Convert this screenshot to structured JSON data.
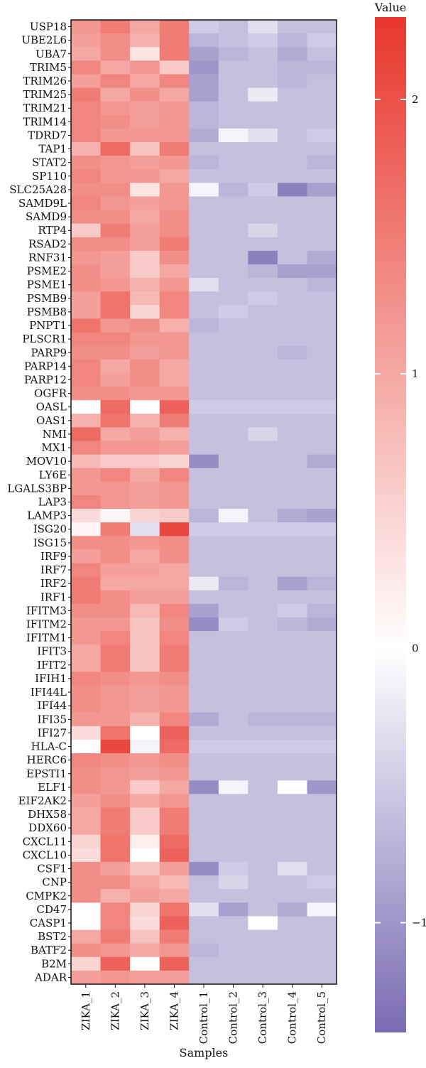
{
  "chart_data": {
    "type": "heatmap",
    "xlabel": "Samples",
    "ylabel": "",
    "legend": {
      "title": "Value",
      "ticks": [
        2,
        1,
        0,
        -1
      ],
      "tick_labels": [
        "2",
        "1",
        "0",
        "−1"
      ],
      "range": [
        -1.4,
        2.3
      ],
      "placement": "right"
    },
    "colors": {
      "high": "#e8372c",
      "mid": "#ffffff",
      "low": "#7a6bb3"
    },
    "columns": [
      "ZIKA_1",
      "ZIKA_2",
      "ZIKA_3",
      "ZIKA_4",
      "Control_1",
      "Control_2",
      "Control_3",
      "Control_4",
      "Control_5"
    ],
    "rows": [
      "USP18",
      "UBE2L6",
      "UBA7",
      "TRIM5",
      "TRIM26",
      "TRIM25",
      "TRIM21",
      "TRIM14",
      "TDRD7",
      "TAP1",
      "STAT2",
      "SP110",
      "SLC25A28",
      "SAMD9L",
      "SAMD9",
      "RTP4",
      "RSAD2",
      "RNF31",
      "PSME2",
      "PSME1",
      "PSMB9",
      "PSMB8",
      "PNPT1",
      "PLSCR1",
      "PARP9",
      "PARP14",
      "PARP12",
      "OGFR",
      "OASL",
      "OAS1",
      "NMI",
      "MX1",
      "MOV10",
      "LY6E",
      "LGALS3BP",
      "LAP3",
      "LAMP3",
      "ISG20",
      "ISG15",
      "IRF9",
      "IRF7",
      "IRF2",
      "IRF1",
      "IFITM3",
      "IFITM2",
      "IFITM1",
      "IFIT3",
      "IFIT2",
      "IFIH1",
      "IFI44L",
      "IFI44",
      "IFI35",
      "IFI27",
      "HLA-C",
      "HERC6",
      "EPSTI1",
      "ELF1",
      "EIF2AK2",
      "DHX58",
      "DDX60",
      "CXCL11",
      "CXCL10",
      "CSF1",
      "CNP",
      "CMPK2",
      "CD47",
      "CASP1",
      "BST2",
      "BATF2",
      "B2M",
      "ADAR"
    ],
    "values": [
      [
        1.2,
        1.5,
        1.0,
        1.5,
        -0.5,
        -0.6,
        -0.3,
        -0.6,
        -0.6
      ],
      [
        1.1,
        1.3,
        0.9,
        1.5,
        -0.7,
        -0.6,
        -0.5,
        -0.7,
        -0.5
      ],
      [
        1.0,
        1.3,
        0.3,
        1.5,
        -0.9,
        -0.7,
        -0.6,
        -0.8,
        -0.6
      ],
      [
        1.4,
        1.0,
        1.2,
        0.6,
        -1.0,
        -0.6,
        -0.6,
        -0.7,
        -0.7
      ],
      [
        1.1,
        1.4,
        1.0,
        1.4,
        -0.9,
        -0.6,
        -0.6,
        -0.7,
        -0.6
      ],
      [
        1.5,
        1.0,
        1.3,
        1.0,
        -0.9,
        -0.6,
        -0.2,
        -0.6,
        -0.6
      ],
      [
        1.4,
        1.2,
        1.1,
        1.2,
        -0.7,
        -0.6,
        -0.6,
        -0.6,
        -0.6
      ],
      [
        1.4,
        1.3,
        1.1,
        1.2,
        -0.7,
        -0.6,
        -0.6,
        -0.6,
        -0.6
      ],
      [
        1.4,
        1.2,
        1.2,
        1.2,
        -0.8,
        -0.1,
        -0.3,
        -0.6,
        -0.5
      ],
      [
        0.9,
        1.7,
        0.7,
        1.5,
        -0.6,
        -0.6,
        -0.6,
        -0.6,
        -0.6
      ],
      [
        1.3,
        1.2,
        1.1,
        1.2,
        -0.7,
        -0.6,
        -0.6,
        -0.6,
        -0.7
      ],
      [
        1.4,
        1.2,
        1.2,
        1.0,
        -0.6,
        -0.6,
        -0.6,
        -0.6,
        -0.6
      ],
      [
        1.3,
        1.3,
        0.3,
        1.2,
        -0.1,
        -0.7,
        -0.5,
        -1.2,
        -0.9
      ],
      [
        1.4,
        1.2,
        1.1,
        1.2,
        -0.6,
        -0.6,
        -0.6,
        -0.6,
        -0.6
      ],
      [
        1.3,
        1.3,
        1.0,
        1.3,
        -0.6,
        -0.6,
        -0.6,
        -0.6,
        -0.6
      ],
      [
        0.6,
        1.5,
        1.1,
        1.3,
        -0.6,
        -0.6,
        -0.4,
        -0.6,
        -0.6
      ],
      [
        1.3,
        1.3,
        1.1,
        1.5,
        -0.6,
        -0.6,
        -0.6,
        -0.6,
        -0.6
      ],
      [
        1.2,
        1.1,
        0.6,
        1.3,
        -0.6,
        -0.6,
        -1.2,
        -0.6,
        -0.8
      ],
      [
        1.3,
        1.1,
        0.6,
        1.0,
        -0.6,
        -0.6,
        -0.7,
        -0.9,
        -0.9
      ],
      [
        1.3,
        1.2,
        0.9,
        1.2,
        -0.3,
        -0.6,
        -0.6,
        -0.6,
        -0.7
      ],
      [
        1.1,
        1.6,
        0.8,
        1.4,
        -0.6,
        -0.6,
        -0.5,
        -0.6,
        -0.6
      ],
      [
        1.1,
        1.6,
        0.5,
        1.4,
        -0.6,
        -0.5,
        -0.6,
        -0.6,
        -0.6
      ],
      [
        1.6,
        1.2,
        1.3,
        0.9,
        -0.7,
        -0.6,
        -0.6,
        -0.6,
        -0.6
      ],
      [
        1.4,
        1.4,
        1.2,
        1.2,
        -0.6,
        -0.6,
        -0.6,
        -0.6,
        -0.6
      ],
      [
        1.3,
        1.3,
        1.1,
        1.2,
        -0.6,
        -0.6,
        -0.6,
        -0.7,
        -0.6
      ],
      [
        1.4,
        1.0,
        1.3,
        1.0,
        -0.6,
        -0.6,
        -0.6,
        -0.6,
        -0.6
      ],
      [
        1.4,
        1.1,
        1.3,
        1.0,
        -0.6,
        -0.6,
        -0.6,
        -0.6,
        -0.6
      ],
      [
        1.3,
        1.3,
        1.2,
        1.2,
        -0.6,
        -0.6,
        -0.6,
        -0.6,
        -0.6
      ],
      [
        0.0,
        1.7,
        0.0,
        1.8,
        -0.5,
        -0.5,
        -0.5,
        -0.5,
        -0.5
      ],
      [
        0.9,
        1.6,
        0.9,
        1.5,
        -0.6,
        -0.6,
        -0.6,
        -0.6,
        -0.6
      ],
      [
        1.7,
        1.0,
        1.1,
        0.9,
        -0.6,
        -0.6,
        -0.4,
        -0.6,
        -0.6
      ],
      [
        1.4,
        1.2,
        1.2,
        1.1,
        -0.6,
        -0.6,
        -0.6,
        -0.6,
        -0.6
      ],
      [
        0.8,
        0.6,
        0.6,
        0.5,
        -1.1,
        -0.6,
        -0.6,
        -0.6,
        -0.8
      ],
      [
        1.2,
        1.4,
        1.0,
        1.4,
        -0.6,
        -0.6,
        -0.6,
        -0.6,
        -0.6
      ],
      [
        1.2,
        1.2,
        1.1,
        1.2,
        -0.6,
        -0.6,
        -0.6,
        -0.6,
        -0.6
      ],
      [
        1.4,
        1.2,
        1.1,
        1.2,
        -0.6,
        -0.6,
        -0.6,
        -0.6,
        -0.6
      ],
      [
        0.4,
        0.1,
        0.5,
        0.6,
        -0.7,
        -0.1,
        -0.6,
        -0.8,
        -0.9
      ],
      [
        0.1,
        1.5,
        -0.3,
        2.1,
        -0.5,
        -0.5,
        -0.5,
        -0.5,
        -0.5
      ],
      [
        1.3,
        1.3,
        1.2,
        1.3,
        -0.6,
        -0.6,
        -0.6,
        -0.6,
        -0.6
      ],
      [
        1.1,
        1.3,
        1.0,
        1.3,
        -0.6,
        -0.6,
        -0.6,
        -0.6,
        -0.6
      ],
      [
        1.4,
        1.1,
        1.1,
        1.0,
        -0.6,
        -0.6,
        -0.6,
        -0.6,
        -0.6
      ],
      [
        1.5,
        1.0,
        1.0,
        1.0,
        -0.2,
        -0.7,
        -0.6,
        -0.9,
        -0.7
      ],
      [
        1.5,
        1.3,
        1.1,
        1.1,
        -0.6,
        -0.6,
        -0.6,
        -0.6,
        -0.6
      ],
      [
        1.3,
        1.3,
        0.8,
        1.4,
        -0.9,
        -0.6,
        -0.6,
        -0.5,
        -0.7
      ],
      [
        1.2,
        1.2,
        0.7,
        1.3,
        -1.1,
        -0.5,
        -0.6,
        -0.7,
        -0.8
      ],
      [
        1.2,
        1.4,
        0.7,
        1.4,
        -0.6,
        -0.6,
        -0.6,
        -0.6,
        -0.6
      ],
      [
        1.0,
        1.5,
        0.7,
        1.5,
        -0.6,
        -0.6,
        -0.6,
        -0.6,
        -0.6
      ],
      [
        1.0,
        1.5,
        0.7,
        1.5,
        -0.6,
        -0.6,
        -0.6,
        -0.6,
        -0.6
      ],
      [
        1.4,
        1.3,
        1.2,
        1.3,
        -0.6,
        -0.6,
        -0.6,
        -0.6,
        -0.6
      ],
      [
        1.3,
        1.2,
        1.1,
        1.2,
        -0.6,
        -0.6,
        -0.6,
        -0.6,
        -0.6
      ],
      [
        1.3,
        1.2,
        1.1,
        1.2,
        -0.6,
        -0.6,
        -0.6,
        -0.6,
        -0.6
      ],
      [
        1.2,
        1.2,
        0.9,
        1.4,
        -0.8,
        -0.6,
        -0.7,
        -0.7,
        -0.7
      ],
      [
        0.4,
        1.6,
        0.0,
        1.8,
        -0.6,
        -0.6,
        -0.6,
        -0.6,
        -0.6
      ],
      [
        0.0,
        2.1,
        -0.1,
        1.7,
        -0.5,
        -0.5,
        -0.5,
        -0.5,
        -0.5
      ],
      [
        1.4,
        1.3,
        1.2,
        1.3,
        -0.6,
        -0.6,
        -0.6,
        -0.6,
        -0.6
      ],
      [
        1.3,
        1.2,
        1.1,
        1.2,
        -0.6,
        -0.6,
        -0.6,
        -0.6,
        -0.6
      ],
      [
        1.3,
        1.2,
        0.6,
        1.0,
        -1.1,
        -0.1,
        -0.6,
        0.0,
        -1.0
      ],
      [
        1.1,
        1.3,
        1.0,
        1.2,
        -0.6,
        -0.6,
        -0.6,
        -0.6,
        -0.6
      ],
      [
        1.0,
        1.5,
        0.6,
        1.5,
        -0.6,
        -0.6,
        -0.6,
        -0.6,
        -0.6
      ],
      [
        1.0,
        1.5,
        0.6,
        1.5,
        -0.6,
        -0.6,
        -0.6,
        -0.6,
        -0.6
      ],
      [
        0.5,
        1.6,
        0.2,
        1.7,
        -0.6,
        -0.6,
        -0.6,
        -0.6,
        -0.6
      ],
      [
        0.4,
        1.6,
        0.0,
        1.8,
        -0.6,
        -0.6,
        -0.6,
        -0.6,
        -0.6
      ],
      [
        1.3,
        1.1,
        0.7,
        1.1,
        -1.1,
        -0.5,
        -0.6,
        -0.3,
        -0.6
      ],
      [
        1.3,
        1.3,
        1.0,
        0.8,
        -0.6,
        -0.4,
        -0.6,
        -0.6,
        -0.5
      ],
      [
        1.3,
        0.9,
        1.1,
        1.0,
        -0.6,
        -0.6,
        -0.6,
        -0.6,
        -0.6
      ],
      [
        0.0,
        1.4,
        0.5,
        1.6,
        -0.3,
        -0.9,
        -0.6,
        -0.8,
        -0.1
      ],
      [
        0.0,
        1.4,
        0.4,
        1.8,
        -0.6,
        -0.6,
        0.0,
        -0.6,
        -0.6
      ],
      [
        1.0,
        1.5,
        0.7,
        1.5,
        -0.6,
        -0.6,
        -0.6,
        -0.6,
        -0.6
      ],
      [
        1.3,
        1.2,
        1.0,
        1.2,
        -0.7,
        -0.6,
        -0.6,
        -0.6,
        -0.6
      ],
      [
        0.5,
        1.8,
        0.0,
        1.8,
        -0.6,
        -0.6,
        -0.6,
        -0.6,
        -0.6
      ],
      [
        1.1,
        1.2,
        1.1,
        1.1,
        -0.6,
        -0.6,
        -0.6,
        -0.6,
        -0.6
      ]
    ]
  }
}
